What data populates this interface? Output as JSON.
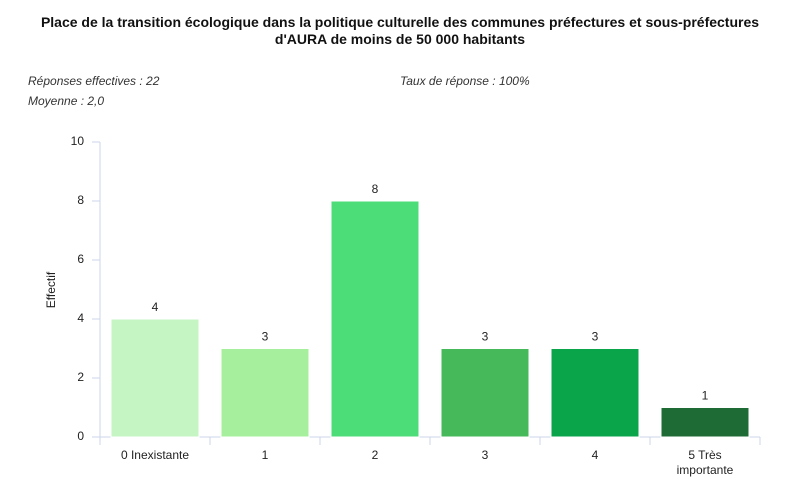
{
  "chart_data": {
    "type": "bar",
    "title": "Place de la transition écologique dans la politique culturelle des communes préfectures et sous-préfectures d'AURA de moins de 50 000 habitants",
    "annotations": [
      "Réponses effectives : 22",
      "Taux de réponse : 100%",
      "Moyenne : 2,0"
    ],
    "y_label": "Effectif",
    "categories": [
      "0 Inexistante",
      "1",
      "2",
      "3",
      "4",
      "5 Très importante"
    ],
    "values": [
      4,
      3,
      8,
      3,
      3,
      1
    ],
    "colors": [
      "#c6f5c4",
      "#a6f09d",
      "#4ddd78",
      "#46ba5a",
      "#0aa54b",
      "#1f6b36"
    ],
    "ylim": [
      0,
      10
    ],
    "yticks": [
      0,
      2,
      4,
      6,
      8,
      10
    ]
  }
}
